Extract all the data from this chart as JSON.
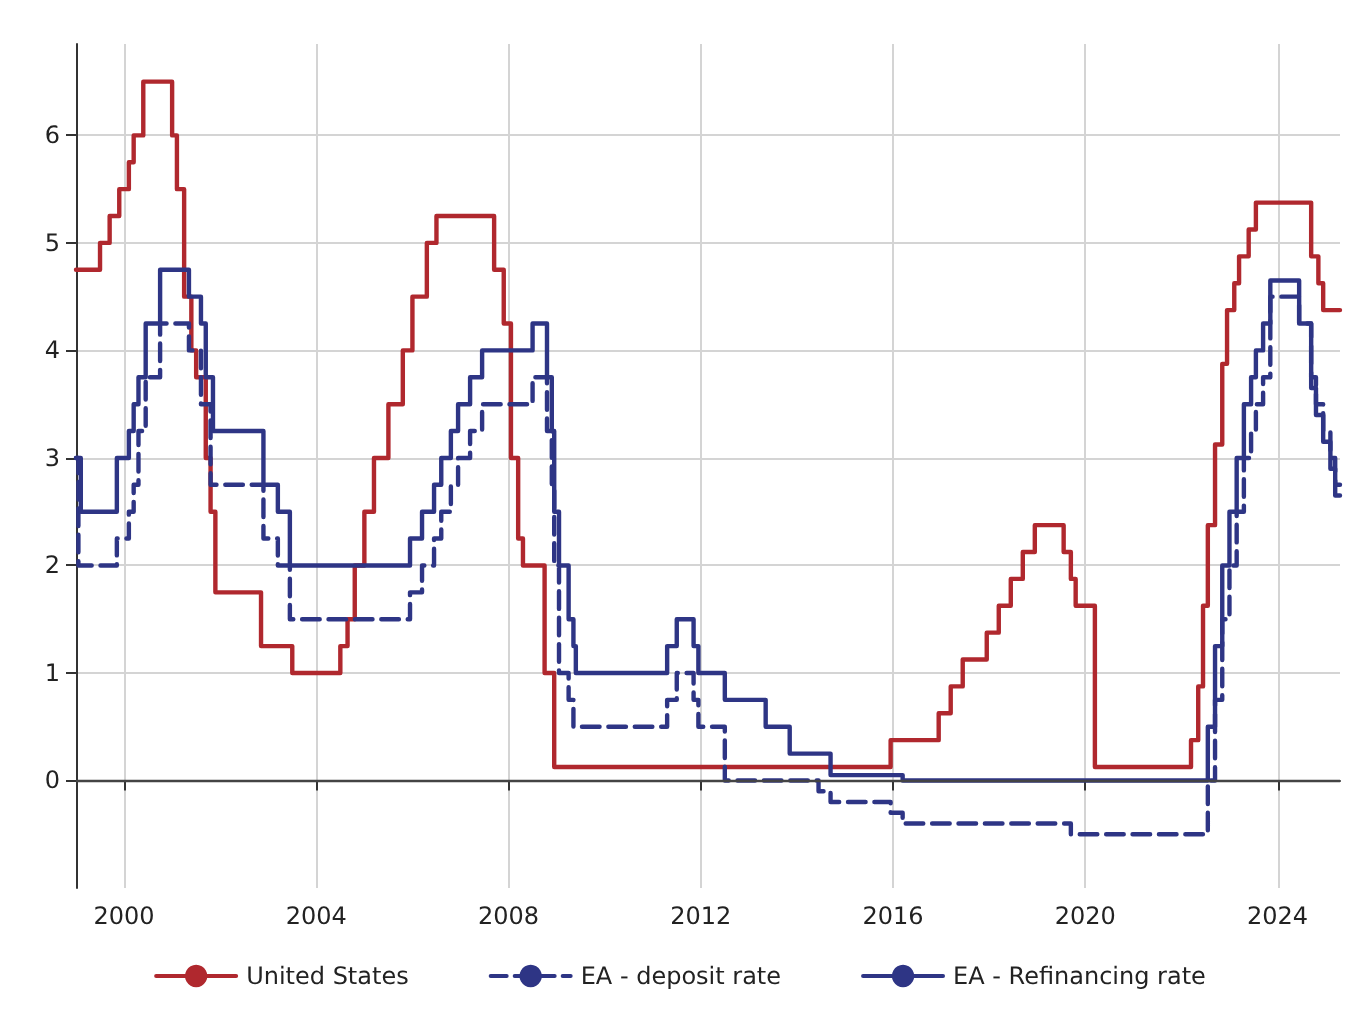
{
  "chart_data": {
    "type": "step",
    "xlim": [
      1999,
      2025.3
    ],
    "xticks": [
      2000,
      2004,
      2008,
      2012,
      2016,
      2020,
      2024
    ],
    "ylim": [
      -1,
      6.85
    ],
    "yticks": [
      0,
      1,
      2,
      3,
      4,
      5,
      6
    ],
    "grid": true,
    "legend": "bottom",
    "marker": "none",
    "ref_lines": [
      {
        "axis": "y",
        "value": 0,
        "color": "#444444"
      }
    ],
    "series": [
      {
        "name": "United States",
        "color": "#b0282e",
        "line_style": "solid",
        "x": [
          1999,
          1999.5,
          1999.7,
          1999.9,
          2000.1,
          2000.2,
          2000.4,
          2001.0,
          2001.1,
          2001.25,
          2001.4,
          2001.5,
          2001.7,
          2001.8,
          2001.9,
          2002.85,
          2003.5,
          2004.5,
          2004.65,
          2004.8,
          2005.0,
          2005.2,
          2005.5,
          2005.8,
          2006.0,
          2006.3,
          2006.5,
          2007.7,
          2007.9,
          2008.05,
          2008.2,
          2008.3,
          2008.75,
          2008.95,
          2015.95,
          2016.95,
          2017.2,
          2017.45,
          2017.95,
          2018.2,
          2018.45,
          2018.7,
          2018.95,
          2019.55,
          2019.7,
          2019.8,
          2020.2,
          2022.2,
          2022.35,
          2022.45,
          2022.55,
          2022.7,
          2022.85,
          2022.95,
          2023.1,
          2023.2,
          2023.4,
          2023.55,
          2024.7,
          2024.85,
          2024.95,
          2025.3
        ],
        "values": [
          4.75,
          5.0,
          5.25,
          5.5,
          5.75,
          6.0,
          6.5,
          6.0,
          5.5,
          4.5,
          4.0,
          3.75,
          3.0,
          2.5,
          1.75,
          1.25,
          1.0,
          1.25,
          1.5,
          2.0,
          2.5,
          3.0,
          3.5,
          4.0,
          4.5,
          5.0,
          5.25,
          4.75,
          4.25,
          3.0,
          2.25,
          2.0,
          1.0,
          0.125,
          0.375,
          0.625,
          0.875,
          1.125,
          1.375,
          1.625,
          1.875,
          2.125,
          2.375,
          2.125,
          1.875,
          1.625,
          0.125,
          0.375,
          0.875,
          1.625,
          2.375,
          3.125,
          3.875,
          4.375,
          4.625,
          4.875,
          5.125,
          5.375,
          4.875,
          4.625,
          4.375,
          4.375
        ]
      },
      {
        "name": "EA - deposit rate",
        "color": "#2e3585",
        "line_style": "dashed",
        "x": [
          1999,
          1999.05,
          1999.85,
          2000.1,
          2000.2,
          2000.3,
          2000.45,
          2000.75,
          2001.35,
          2001.6,
          2001.8,
          2002.9,
          2003.2,
          2003.45,
          2005.95,
          2006.2,
          2006.45,
          2006.6,
          2006.8,
          2006.95,
          2007.2,
          2007.45,
          2008.5,
          2008.8,
          2008.9,
          2008.95,
          2009.05,
          2009.25,
          2009.35,
          2011.3,
          2011.5,
          2011.85,
          2011.95,
          2012.5,
          2014.45,
          2014.7,
          2015.95,
          2016.2,
          2019.7,
          2022.55,
          2022.7,
          2022.85,
          2023.0,
          2023.15,
          2023.3,
          2023.45,
          2023.55,
          2023.7,
          2023.85,
          2024.45,
          2024.7,
          2024.8,
          2024.95,
          2025.1,
          2025.2,
          2025.3
        ],
        "values": [
          3.0,
          2.0,
          2.25,
          2.5,
          2.75,
          3.25,
          3.75,
          4.25,
          4.0,
          3.5,
          2.75,
          2.25,
          2.0,
          1.5,
          1.75,
          2.0,
          2.25,
          2.5,
          2.75,
          3.0,
          3.25,
          3.5,
          3.75,
          3.25,
          2.75,
          2.0,
          1.0,
          0.75,
          0.5,
          0.75,
          1.0,
          0.75,
          0.5,
          0.0,
          -0.1,
          -0.2,
          -0.3,
          -0.4,
          -0.5,
          0.0,
          0.75,
          1.5,
          2.0,
          2.5,
          3.0,
          3.25,
          3.5,
          3.75,
          4.5,
          4.25,
          3.75,
          3.5,
          3.25,
          3.0,
          2.75,
          2.75
        ]
      },
      {
        "name": "EA - Refinancing rate",
        "color": "#2e3585",
        "line_style": "solid",
        "x": [
          1999,
          1999.1,
          1999.85,
          2000.1,
          2000.2,
          2000.3,
          2000.45,
          2000.75,
          2001.35,
          2001.6,
          2001.7,
          2001.85,
          2002.9,
          2003.2,
          2003.45,
          2005.95,
          2006.2,
          2006.45,
          2006.6,
          2006.8,
          2006.95,
          2007.2,
          2007.45,
          2008.5,
          2008.8,
          2008.9,
          2008.95,
          2009.05,
          2009.25,
          2009.35,
          2009.4,
          2011.3,
          2011.5,
          2011.85,
          2011.95,
          2012.5,
          2013.35,
          2013.85,
          2014.7,
          2016.2,
          2022.55,
          2022.7,
          2022.85,
          2023.0,
          2023.15,
          2023.3,
          2023.45,
          2023.55,
          2023.7,
          2023.85,
          2024.45,
          2024.7,
          2024.8,
          2024.95,
          2025.1,
          2025.2,
          2025.3
        ],
        "values": [
          3.0,
          2.5,
          3.0,
          3.25,
          3.5,
          3.75,
          4.25,
          4.75,
          4.5,
          4.25,
          3.75,
          3.25,
          2.75,
          2.5,
          2.0,
          2.25,
          2.5,
          2.75,
          3.0,
          3.25,
          3.5,
          3.75,
          4.0,
          4.25,
          3.75,
          3.25,
          2.5,
          2.0,
          1.5,
          1.25,
          1.0,
          1.25,
          1.5,
          1.25,
          1.0,
          0.75,
          0.5,
          0.25,
          0.05,
          0.0,
          0.5,
          1.25,
          2.0,
          2.5,
          3.0,
          3.5,
          3.75,
          4.0,
          4.25,
          4.65,
          4.25,
          3.65,
          3.4,
          3.15,
          2.9,
          2.65,
          2.65
        ]
      }
    ]
  }
}
